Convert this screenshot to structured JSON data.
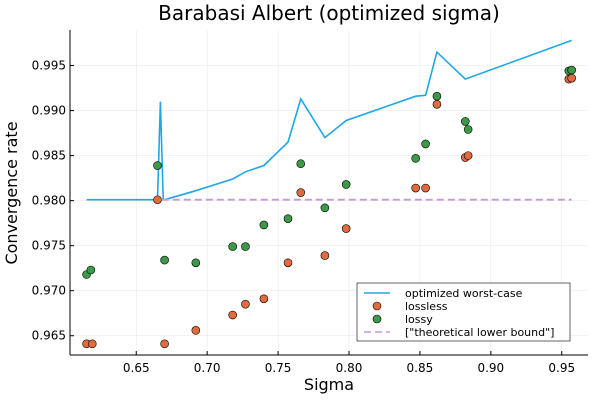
{
  "chart_data": {
    "type": "scatter",
    "title": "Barabasi Albert (optimized sigma)",
    "xlabel": "Sigma",
    "ylabel": "Convergence rate",
    "xlim": [
      0.6033,
      0.9685
    ],
    "ylim": [
      0.96286,
      0.99895
    ],
    "xticks": [
      0.65,
      0.7,
      0.75,
      0.8,
      0.85,
      0.9,
      0.95
    ],
    "xtick_labels": [
      "0.65",
      "0.70",
      "0.75",
      "0.80",
      "0.85",
      "0.90",
      "0.95"
    ],
    "yticks": [
      0.965,
      0.97,
      0.975,
      0.98,
      0.985,
      0.99,
      0.995
    ],
    "ytick_labels": [
      "0.965",
      "0.970",
      "0.975",
      "0.980",
      "0.985",
      "0.990",
      "0.995"
    ],
    "grid": true,
    "legend_position": "bottom-right",
    "series": [
      {
        "name": "optimized worst-case",
        "kind": "line",
        "color": "#1ea7e6",
        "points": [
          [
            0.615,
            0.9801
          ],
          [
            0.665,
            0.9801
          ],
          [
            0.667,
            0.991
          ],
          [
            0.669,
            0.9802
          ],
          [
            0.67,
            0.9801
          ],
          [
            0.692,
            0.9811
          ],
          [
            0.718,
            0.9824
          ],
          [
            0.727,
            0.9832
          ],
          [
            0.74,
            0.9839
          ],
          [
            0.757,
            0.9865
          ],
          [
            0.766,
            0.9913
          ],
          [
            0.783,
            0.987
          ],
          [
            0.798,
            0.9889
          ],
          [
            0.847,
            0.9916
          ],
          [
            0.854,
            0.9917
          ],
          [
            0.862,
            0.9965
          ],
          [
            0.882,
            0.9935
          ],
          [
            0.957,
            0.9978
          ]
        ]
      },
      {
        "name": "lossless",
        "kind": "scatter",
        "color": "#e16b3d",
        "points": [
          [
            0.615,
            0.9641
          ],
          [
            0.619,
            0.9641
          ],
          [
            0.665,
            0.9801
          ],
          [
            0.67,
            0.9641
          ],
          [
            0.692,
            0.9656
          ],
          [
            0.718,
            0.9673
          ],
          [
            0.727,
            0.9685
          ],
          [
            0.74,
            0.9691
          ],
          [
            0.757,
            0.9731
          ],
          [
            0.766,
            0.9809
          ],
          [
            0.783,
            0.9739
          ],
          [
            0.798,
            0.9769
          ],
          [
            0.847,
            0.9814
          ],
          [
            0.854,
            0.9814
          ],
          [
            0.862,
            0.9907
          ],
          [
            0.882,
            0.9848
          ],
          [
            0.884,
            0.985
          ],
          [
            0.955,
            0.9935
          ],
          [
            0.957,
            0.9936
          ]
        ]
      },
      {
        "name": "lossy",
        "kind": "scatter",
        "color": "#3a9a45",
        "points": [
          [
            0.615,
            0.9718
          ],
          [
            0.618,
            0.9723
          ],
          [
            0.665,
            0.9839
          ],
          [
            0.67,
            0.9734
          ],
          [
            0.692,
            0.9731
          ],
          [
            0.718,
            0.9749
          ],
          [
            0.727,
            0.9749
          ],
          [
            0.74,
            0.9773
          ],
          [
            0.757,
            0.978
          ],
          [
            0.766,
            0.9841
          ],
          [
            0.783,
            0.9792
          ],
          [
            0.798,
            0.9818
          ],
          [
            0.847,
            0.9847
          ],
          [
            0.854,
            0.9863
          ],
          [
            0.862,
            0.9916
          ],
          [
            0.882,
            0.9888
          ],
          [
            0.884,
            0.9879
          ],
          [
            0.955,
            0.9944
          ],
          [
            0.957,
            0.9945
          ]
        ]
      },
      {
        "name": "[\"theoretical lower bound\"]",
        "kind": "dashed-line",
        "color": "#c79ad6",
        "points": [
          [
            0.668,
            0.9801
          ],
          [
            0.957,
            0.9801
          ]
        ]
      }
    ]
  }
}
